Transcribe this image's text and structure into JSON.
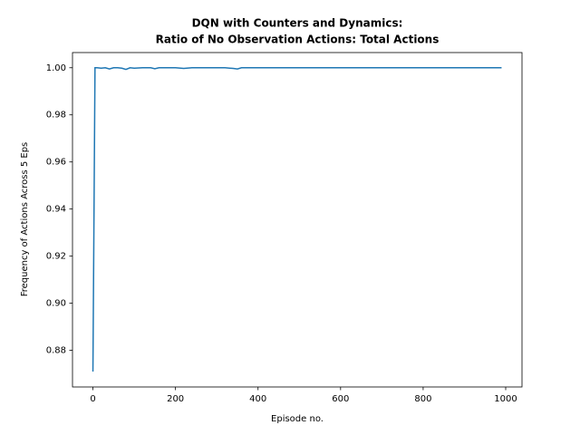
{
  "chart_data": {
    "type": "line",
    "title": [
      "DQN with Counters and Dynamics:",
      "Ratio of No Observation Actions: Total Actions"
    ],
    "x_label": "Episode no.",
    "y_label": "Frequency of Actions Across 5 Eps",
    "x": [
      0,
      5,
      10,
      20,
      30,
      40,
      50,
      60,
      70,
      80,
      90,
      100,
      120,
      140,
      150,
      160,
      180,
      200,
      220,
      240,
      260,
      280,
      300,
      320,
      340,
      350,
      360,
      380,
      400,
      500,
      600,
      700,
      800,
      900,
      990
    ],
    "series": [
      {
        "name": "ratio",
        "color": "#1f77b4",
        "values": [
          0.871,
          1.0,
          1.0,
          0.9998,
          1.0,
          0.9995,
          1.0,
          1.0,
          0.9998,
          0.9993,
          1.0,
          0.9998,
          1.0,
          1.0,
          0.9996,
          1.0,
          1.0,
          1.0,
          0.9997,
          1.0,
          1.0,
          1.0,
          1.0,
          1.0,
          0.9997,
          0.9995,
          1.0,
          1.0,
          1.0,
          1.0,
          1.0,
          1.0,
          1.0,
          1.0,
          1.0
        ]
      }
    ],
    "xlim": [
      -49.5,
      1039.5
    ],
    "ylim": [
      0.86445,
      1.00645
    ],
    "xticks": [
      0,
      200,
      400,
      600,
      800,
      1000
    ],
    "yticks": [
      0.88,
      {
        "value": 0.9,
        "label": "0.90"
      },
      0.92,
      0.94,
      0.96,
      0.98,
      {
        "value": 1,
        "label": "1.00"
      }
    ]
  }
}
